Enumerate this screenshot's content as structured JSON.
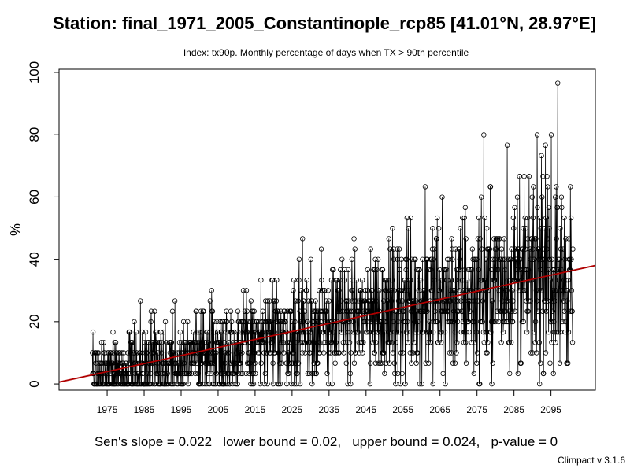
{
  "chart_data": {
    "type": "line",
    "title": "Station: final_1971_2005_Constantinople_rcp85 [41.01°N, 28.97°E]",
    "subtitle": "Index: tx90p. Monthly percentage of days when TX > 90th percentile",
    "ylabel": "%",
    "xlim": [
      1962,
      2107
    ],
    "ylim": [
      -2,
      101
    ],
    "x_ticks": [
      1975,
      1985,
      1995,
      2005,
      2015,
      2025,
      2035,
      2045,
      2055,
      2065,
      2075,
      2085,
      2095
    ],
    "y_ticks": [
      0,
      20,
      40,
      60,
      80,
      100
    ],
    "series": [
      {
        "role": "monthly",
        "markers": "open-circle",
        "color": "#000000",
        "x_start": 1971,
        "x_end": 2100,
        "trend_knots": [
          [
            1971,
            2.2
          ],
          [
            1985,
            4.4
          ],
          [
            2005,
            10.4
          ],
          [
            2025,
            15.8
          ],
          [
            2045,
            21.9
          ],
          [
            2065,
            26.6
          ],
          [
            2085,
            32.5
          ],
          [
            2100,
            34.8
          ]
        ],
        "spread_knots": [
          [
            1971,
            10
          ],
          [
            2000,
            13
          ],
          [
            2040,
            17
          ],
          [
            2070,
            22
          ],
          [
            2100,
            26
          ]
        ]
      },
      {
        "role": "trend",
        "color": "#b00000",
        "x": [
          1962,
          2107
        ],
        "y": [
          0.6,
          38.0
        ]
      }
    ],
    "grid": false,
    "legend": "none"
  },
  "footer": {
    "stats": "Sen's slope = 0.022   lower bound = 0.02,   upper bound = 0.024,   p-value = 0",
    "version": "Climpact v 3.1.6"
  }
}
